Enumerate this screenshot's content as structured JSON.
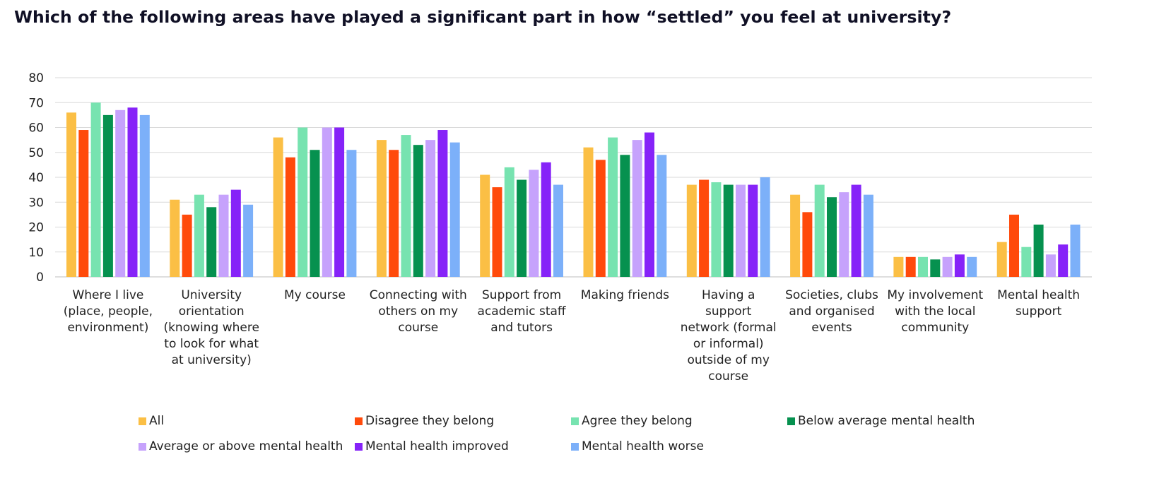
{
  "title": "Which of the following areas have played a significant part in how “settled” you feel at university?",
  "chart_data": {
    "type": "bar",
    "title": "Which of the following areas have played a significant part in how “settled” you feel at university?",
    "xlabel": "",
    "ylabel": "",
    "ylim": [
      0,
      80
    ],
    "yticks": [
      0,
      10,
      20,
      30,
      40,
      50,
      60,
      70,
      80
    ],
    "grid": true,
    "legend_position": "bottom",
    "categories": [
      [
        "Where I live",
        "(place, people,",
        "environment)"
      ],
      [
        "University",
        "orientation",
        "(knowing where",
        "to look for what",
        "at university)"
      ],
      [
        "My course"
      ],
      [
        "Connecting with",
        "others on my",
        "course"
      ],
      [
        "Support from",
        "academic staff",
        "and tutors"
      ],
      [
        "Making friends"
      ],
      [
        "Having a",
        "support",
        "network (formal",
        "or informal)",
        "outside of my",
        "course"
      ],
      [
        "Societies, clubs",
        "and organised",
        "events"
      ],
      [
        "My involvement",
        "with the local",
        "community"
      ],
      [
        "Mental health",
        "support"
      ]
    ],
    "series": [
      {
        "name": "All",
        "color": "#FBBF45",
        "values": [
          66,
          31,
          56,
          55,
          41,
          52,
          37,
          33,
          8,
          14
        ]
      },
      {
        "name": "Disagree they belong",
        "color": "#FF4A0B",
        "values": [
          59,
          25,
          48,
          51,
          36,
          47,
          39,
          26,
          8,
          25
        ]
      },
      {
        "name": "Agree they belong",
        "color": "#77E3B0",
        "values": [
          70,
          33,
          60,
          57,
          44,
          56,
          38,
          37,
          8,
          12
        ]
      },
      {
        "name": "Below average mental health",
        "color": "#06914F",
        "values": [
          65,
          28,
          51,
          53,
          39,
          49,
          37,
          32,
          7,
          21
        ]
      },
      {
        "name": "Average or above mental health",
        "color": "#C6A2FC",
        "values": [
          67,
          33,
          60,
          55,
          43,
          55,
          37,
          34,
          8,
          9
        ]
      },
      {
        "name": "Mental health improved",
        "color": "#8623F8",
        "values": [
          68,
          35,
          60,
          59,
          46,
          58,
          37,
          37,
          9,
          13
        ]
      },
      {
        "name": "Mental health worse",
        "color": "#7CB0F9",
        "values": [
          65,
          29,
          51,
          54,
          37,
          49,
          40,
          33,
          8,
          21
        ]
      }
    ]
  }
}
